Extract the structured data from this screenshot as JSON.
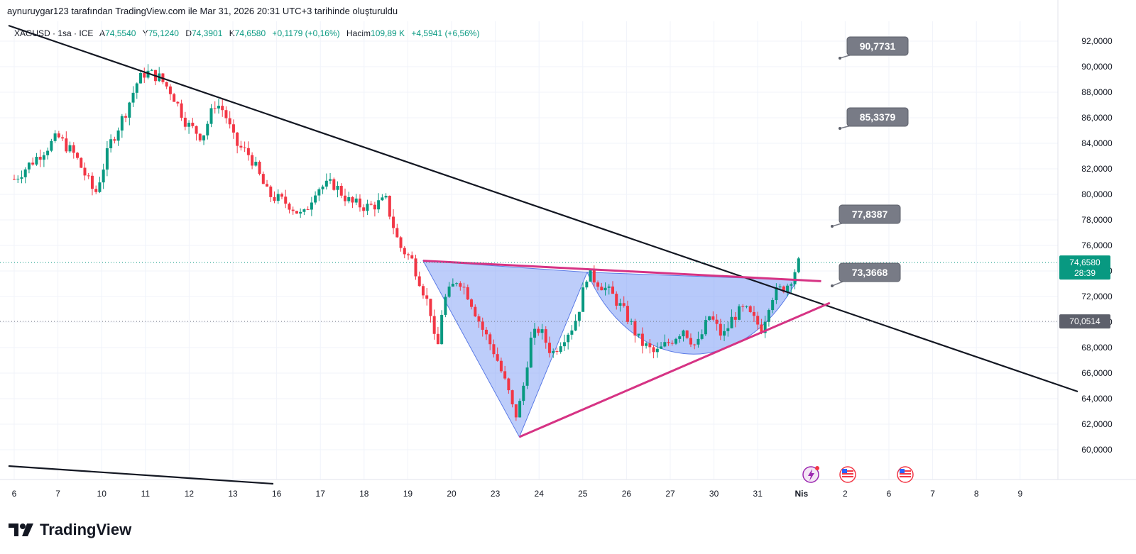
{
  "header": {
    "text": "aynuruygar123 tarafından TradingView.com ile Mar 31, 2026 20:31 UTC+3 tarihinde oluşturuldu"
  },
  "legend": {
    "symbol": "XAGUSD · 1sa · ICE",
    "open_label": "A",
    "open": "74,5540",
    "high_label": "Y",
    "high": "75,1240",
    "low_label": "D",
    "low": "74,3901",
    "close_label": "K",
    "close": "74,6580",
    "change": "+0,1179 (+0,16%)",
    "volume_label": "Hacim",
    "volume": "109,89 K",
    "volume_change": "+4,5941 (+6,56%)"
  },
  "brand": {
    "name": "TradingView"
  },
  "colors": {
    "up": "#089981",
    "down": "#f23645",
    "pattern_fill": "#7b9cf5",
    "trend_line": "#131722",
    "pattern_line": "#d63384",
    "callout": "#787b86",
    "grid": "#f0f3fa"
  },
  "icons": [
    "tradingview-logo-icon",
    "lightning-event-icon",
    "us-flag-event-icon"
  ],
  "chart_data": {
    "type": "candlestick",
    "timeframe": "1h",
    "y_axis": {
      "ticks": [
        "92,0000",
        "90,0000",
        "88,0000",
        "86,0000",
        "84,0000",
        "82,0000",
        "80,0000",
        "78,0000",
        "76,0000",
        "74,0000",
        "72,0000",
        "70,0000",
        "68,0000",
        "66,0000",
        "64,0000",
        "62,0000",
        "60,0000"
      ],
      "tick_values": [
        92,
        90,
        88,
        86,
        84,
        82,
        80,
        78,
        76,
        74,
        72,
        70,
        68,
        66,
        64,
        62,
        60
      ],
      "range": [
        59,
        94
      ]
    },
    "x_axis": {
      "ticks": [
        "6",
        "7",
        "10",
        "11",
        "12",
        "13",
        "16",
        "17",
        "18",
        "19",
        "20",
        "23",
        "24",
        "25",
        "26",
        "27",
        "30",
        "31",
        "Nis",
        "2",
        "6",
        "7",
        "8",
        "9"
      ]
    },
    "last_price": {
      "value": 74.658,
      "label": "74,6580",
      "countdown": "28:39"
    },
    "level_line": {
      "value": 70.0514,
      "label": "70,0514"
    },
    "targets": [
      {
        "label": "90,7731",
        "value": 90.7731
      },
      {
        "label": "85,3379",
        "value": 85.3379
      },
      {
        "label": "77,8387",
        "value": 77.8387
      },
      {
        "label": "73,3668",
        "value": 73.3668
      }
    ],
    "price_path": [
      [
        0,
        81.2
      ],
      [
        1,
        84.5
      ],
      [
        1.4,
        83.0
      ],
      [
        1.85,
        80.0
      ],
      [
        2.2,
        84.0
      ],
      [
        2.55,
        86.5
      ],
      [
        2.8,
        88.7
      ],
      [
        3.0,
        89.6
      ],
      [
        3.3,
        89.2
      ],
      [
        3.6,
        88.0
      ],
      [
        3.95,
        85.5
      ],
      [
        4.3,
        84.5
      ],
      [
        4.6,
        87.2
      ],
      [
        4.8,
        86.5
      ],
      [
        5.05,
        84.0
      ],
      [
        5.4,
        83.0
      ],
      [
        5.8,
        80.0
      ],
      [
        6.3,
        79.2
      ],
      [
        6.6,
        78.2
      ],
      [
        6.9,
        80.5
      ],
      [
        7.3,
        80.8
      ],
      [
        7.7,
        79.3
      ],
      [
        8.1,
        79.0
      ],
      [
        8.5,
        79.5
      ],
      [
        8.8,
        76.0
      ],
      [
        9.1,
        74.8
      ],
      [
        9.3,
        73.0
      ],
      [
        9.55,
        70.5
      ],
      [
        9.65,
        67.0
      ],
      [
        9.8,
        71.5
      ],
      [
        10.15,
        73.5
      ],
      [
        10.4,
        72.0
      ],
      [
        10.7,
        69.5
      ],
      [
        11.0,
        67.5
      ],
      [
        11.3,
        64.5
      ],
      [
        11.45,
        62.5
      ],
      [
        11.6,
        64.0
      ],
      [
        11.8,
        68.5
      ],
      [
        12.0,
        69.5
      ],
      [
        12.3,
        67.5
      ],
      [
        12.55,
        68.8
      ],
      [
        12.8,
        69.8
      ],
      [
        12.95,
        71.5
      ],
      [
        13.1,
        73.8
      ],
      [
        13.4,
        73.0
      ],
      [
        13.7,
        72.0
      ],
      [
        14.0,
        70.5
      ],
      [
        14.3,
        68.5
      ],
      [
        14.65,
        67.5
      ],
      [
        15.0,
        68.5
      ],
      [
        15.3,
        69.5
      ],
      [
        15.6,
        68.0
      ],
      [
        15.9,
        70.5
      ],
      [
        16.2,
        68.8
      ],
      [
        16.45,
        70.5
      ],
      [
        16.7,
        71.0
      ],
      [
        16.95,
        70.0
      ],
      [
        17.1,
        69.5
      ],
      [
        17.3,
        72.0
      ],
      [
        17.5,
        72.5
      ],
      [
        17.7,
        73.0
      ],
      [
        17.9,
        74.4
      ],
      [
        18.0,
        75.0
      ]
    ]
  }
}
